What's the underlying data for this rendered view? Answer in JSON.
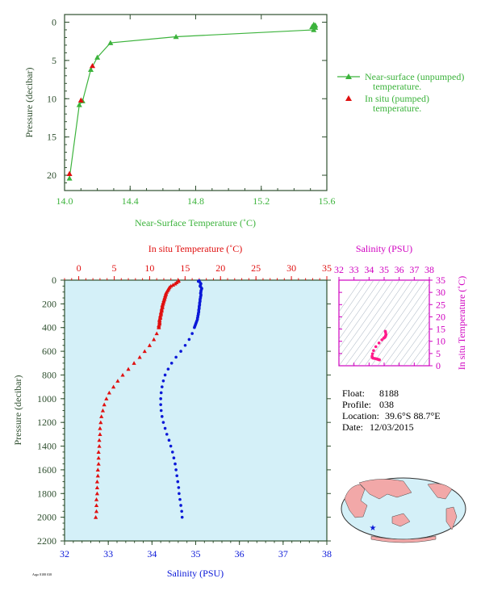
{
  "colors": {
    "green": "#3cb33c",
    "red": "#e01010",
    "blue": "#0a18d8",
    "magenta": "#d000c0",
    "pink": "#ff1a8a",
    "axis_green": "#2f4f2f",
    "plot_bg": "#d4f0f8",
    "land": "#f2a8a8",
    "ocean": "#d4f0f8"
  },
  "info": {
    "float_label": "Float:",
    "float_value": "8188",
    "profile_label": "Profile:",
    "profile_value": "038",
    "location_label": "Location:",
    "location_value": "39.6°S  88.7°E",
    "date_label": "Date:",
    "date_value": "12/03/2015"
  },
  "footer_id": "Argo 8188 038",
  "chart_data": [
    {
      "id": "near-surface",
      "type": "line",
      "xlabel": "Near-Surface Temperature (˚C)",
      "ylabel": "Pressure (decibar)",
      "xlim": [
        14.0,
        15.6
      ],
      "ylim": [
        22,
        -1
      ],
      "xticks": [
        14.0,
        14.4,
        14.8,
        15.2,
        15.6
      ],
      "xtick_labels": [
        "14.0",
        "14.4",
        "14.8",
        "15.2",
        "15.6"
      ],
      "yticks": [
        0,
        5,
        10,
        15,
        20
      ],
      "legend": [
        "Near-surface (unpumped)\n temperature.",
        "In situ (pumped)\n temperature."
      ],
      "legend_position": "right",
      "series": [
        {
          "name": "Near-surface (unpumped)\n temperature.",
          "marker": "triangle",
          "line": true,
          "x": [
            15.52,
            15.53,
            15.52,
            15.51,
            15.53,
            15.52,
            14.68,
            14.28,
            14.2,
            14.16,
            14.11,
            14.09,
            14.03
          ],
          "y": [
            0.3,
            0.4,
            0.5,
            0.6,
            0.7,
            1.0,
            1.9,
            2.7,
            4.6,
            6.2,
            10.3,
            10.8,
            20.4
          ]
        },
        {
          "name": "In situ (pumped)\n temperature.",
          "marker": "triangle",
          "line": false,
          "x": [
            14.17,
            14.1,
            14.03
          ],
          "y": [
            5.7,
            10.2,
            19.8
          ]
        }
      ]
    },
    {
      "id": "profile",
      "type": "scatter",
      "top_xlabel": "In situ Temperature (˚C)",
      "bottom_xlabel": "Salinity (PSU)",
      "ylabel": "Pressure (decibar)",
      "temp_lim": [
        -2,
        35
      ],
      "temp_ticks": [
        0,
        5,
        10,
        15,
        20,
        25,
        30,
        35
      ],
      "sal_lim": [
        32,
        38
      ],
      "sal_ticks": [
        32,
        33,
        34,
        35,
        36,
        37,
        38
      ],
      "ylim": [
        2200,
        0
      ],
      "yticks": [
        0,
        200,
        400,
        600,
        800,
        1000,
        1200,
        1400,
        1600,
        1800,
        2000,
        2200
      ],
      "temperature": {
        "pressure": [
          5,
          10,
          20,
          30,
          40,
          50,
          60,
          70,
          80,
          90,
          100,
          110,
          120,
          130,
          140,
          150,
          160,
          170,
          180,
          190,
          200,
          210,
          220,
          230,
          240,
          250,
          260,
          270,
          280,
          290,
          300,
          310,
          320,
          330,
          340,
          350,
          360,
          370,
          380,
          390,
          400,
          450,
          500,
          550,
          600,
          650,
          700,
          750,
          800,
          850,
          900,
          950,
          1000,
          1050,
          1100,
          1150,
          1200,
          1250,
          1300,
          1350,
          1400,
          1450,
          1500,
          1550,
          1600,
          1650,
          1700,
          1750,
          1800,
          1850,
          1900,
          1950,
          2000
        ],
        "values": [
          14.1,
          14.0,
          13.8,
          13.6,
          13.3,
          13.0,
          12.8,
          12.7,
          12.6,
          12.5,
          12.4,
          12.3,
          12.3,
          12.2,
          12.2,
          12.1,
          12.1,
          12.0,
          12.0,
          11.9,
          11.9,
          11.8,
          11.8,
          11.8,
          11.7,
          11.7,
          11.7,
          11.6,
          11.6,
          11.6,
          11.5,
          11.5,
          11.5,
          11.4,
          11.4,
          11.4,
          11.4,
          11.4,
          11.3,
          11.3,
          11.3,
          11.0,
          10.6,
          10.0,
          9.3,
          8.6,
          7.8,
          7.0,
          6.2,
          5.5,
          4.9,
          4.3,
          3.9,
          3.6,
          3.4,
          3.2,
          3.1,
          3.0,
          3.0,
          2.9,
          2.9,
          2.8,
          2.8,
          2.8,
          2.7,
          2.7,
          2.6,
          2.6,
          2.6,
          2.5,
          2.5,
          2.5,
          2.4
        ]
      },
      "salinity": {
        "pressure": [
          5,
          10,
          20,
          30,
          40,
          50,
          60,
          70,
          80,
          90,
          100,
          110,
          120,
          130,
          140,
          150,
          160,
          170,
          180,
          190,
          200,
          210,
          220,
          230,
          240,
          250,
          260,
          270,
          280,
          290,
          300,
          310,
          320,
          330,
          340,
          350,
          360,
          370,
          380,
          390,
          400,
          450,
          500,
          550,
          600,
          650,
          700,
          750,
          800,
          850,
          900,
          950,
          1000,
          1050,
          1100,
          1150,
          1200,
          1250,
          1300,
          1350,
          1400,
          1450,
          1500,
          1550,
          1600,
          1650,
          1700,
          1750,
          1800,
          1850,
          1900,
          1950,
          2000
        ],
        "values": [
          35.08,
          35.06,
          35.1,
          35.12,
          35.11,
          35.1,
          35.12,
          35.14,
          35.13,
          35.12,
          35.12,
          35.11,
          35.12,
          35.12,
          35.11,
          35.11,
          35.1,
          35.1,
          35.1,
          35.09,
          35.09,
          35.09,
          35.08,
          35.08,
          35.08,
          35.07,
          35.07,
          35.07,
          35.06,
          35.06,
          35.05,
          35.05,
          35.04,
          35.04,
          35.03,
          35.02,
          35.01,
          35.0,
          34.99,
          34.98,
          34.97,
          34.92,
          34.85,
          34.76,
          34.66,
          34.55,
          34.45,
          34.37,
          34.3,
          34.26,
          34.23,
          34.21,
          34.2,
          34.2,
          34.21,
          34.23,
          34.26,
          34.3,
          34.34,
          34.39,
          34.43,
          34.47,
          34.5,
          34.53,
          34.55,
          34.57,
          34.59,
          34.61,
          34.62,
          34.64,
          34.66,
          34.68,
          34.69
        ]
      }
    },
    {
      "id": "ts-diagram",
      "type": "scatter",
      "top_xlabel": "Salinity (PSU)",
      "ylabel": "In situ Temperature (˚C)",
      "xlim": [
        32,
        38
      ],
      "xticks": [
        32,
        33,
        34,
        35,
        36,
        37,
        38
      ],
      "ylim": [
        0,
        35
      ],
      "yticks": [
        0,
        5,
        10,
        15,
        20,
        25,
        30,
        35
      ],
      "isopycnals": true,
      "points": {
        "salinity": [
          35.08,
          35.1,
          35.12,
          35.11,
          35.09,
          35.07,
          35.04,
          35.0,
          34.97,
          34.85,
          34.66,
          34.45,
          34.3,
          34.23,
          34.2,
          34.21,
          34.26,
          34.34,
          34.43,
          34.5,
          34.55,
          34.59,
          34.62,
          34.66,
          34.69
        ],
        "temperature": [
          14.1,
          13.6,
          12.8,
          12.4,
          12.1,
          11.8,
          11.6,
          11.4,
          11.3,
          10.6,
          9.3,
          7.8,
          6.2,
          4.9,
          3.9,
          3.4,
          3.1,
          3.0,
          2.9,
          2.8,
          2.7,
          2.6,
          2.6,
          2.5,
          2.4
        ]
      }
    }
  ]
}
